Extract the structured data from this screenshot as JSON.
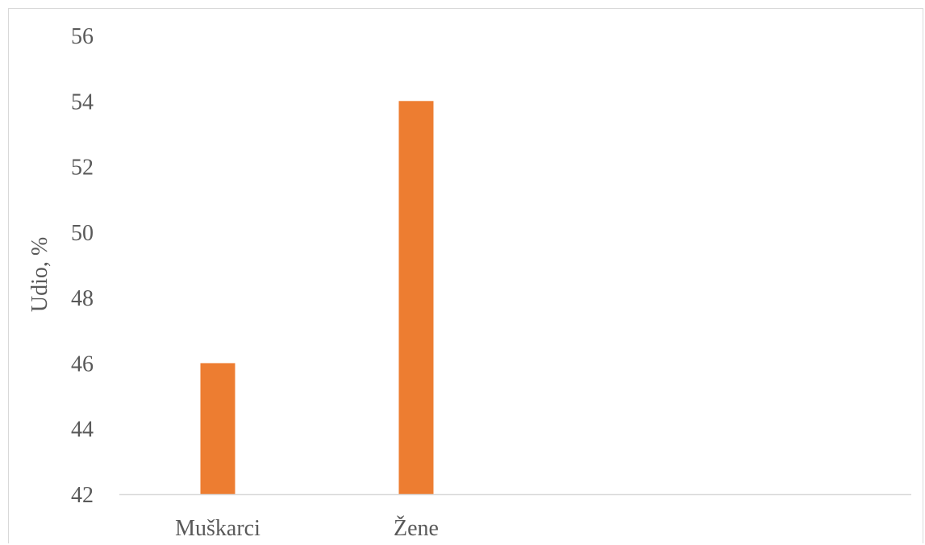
{
  "chart_data": {
    "type": "bar",
    "title": "",
    "xlabel": "",
    "ylabel": "Udio, %",
    "categories": [
      "Muškarci",
      "Žene"
    ],
    "values": [
      46,
      54
    ],
    "ylim": [
      42,
      56
    ],
    "yticks": [
      42,
      44,
      46,
      48,
      50,
      52,
      54,
      56
    ],
    "grid": false,
    "legend": "none",
    "bar_color": "#ED7D31",
    "axis_color": "#d9d9d9",
    "text_color": "#595959"
  }
}
